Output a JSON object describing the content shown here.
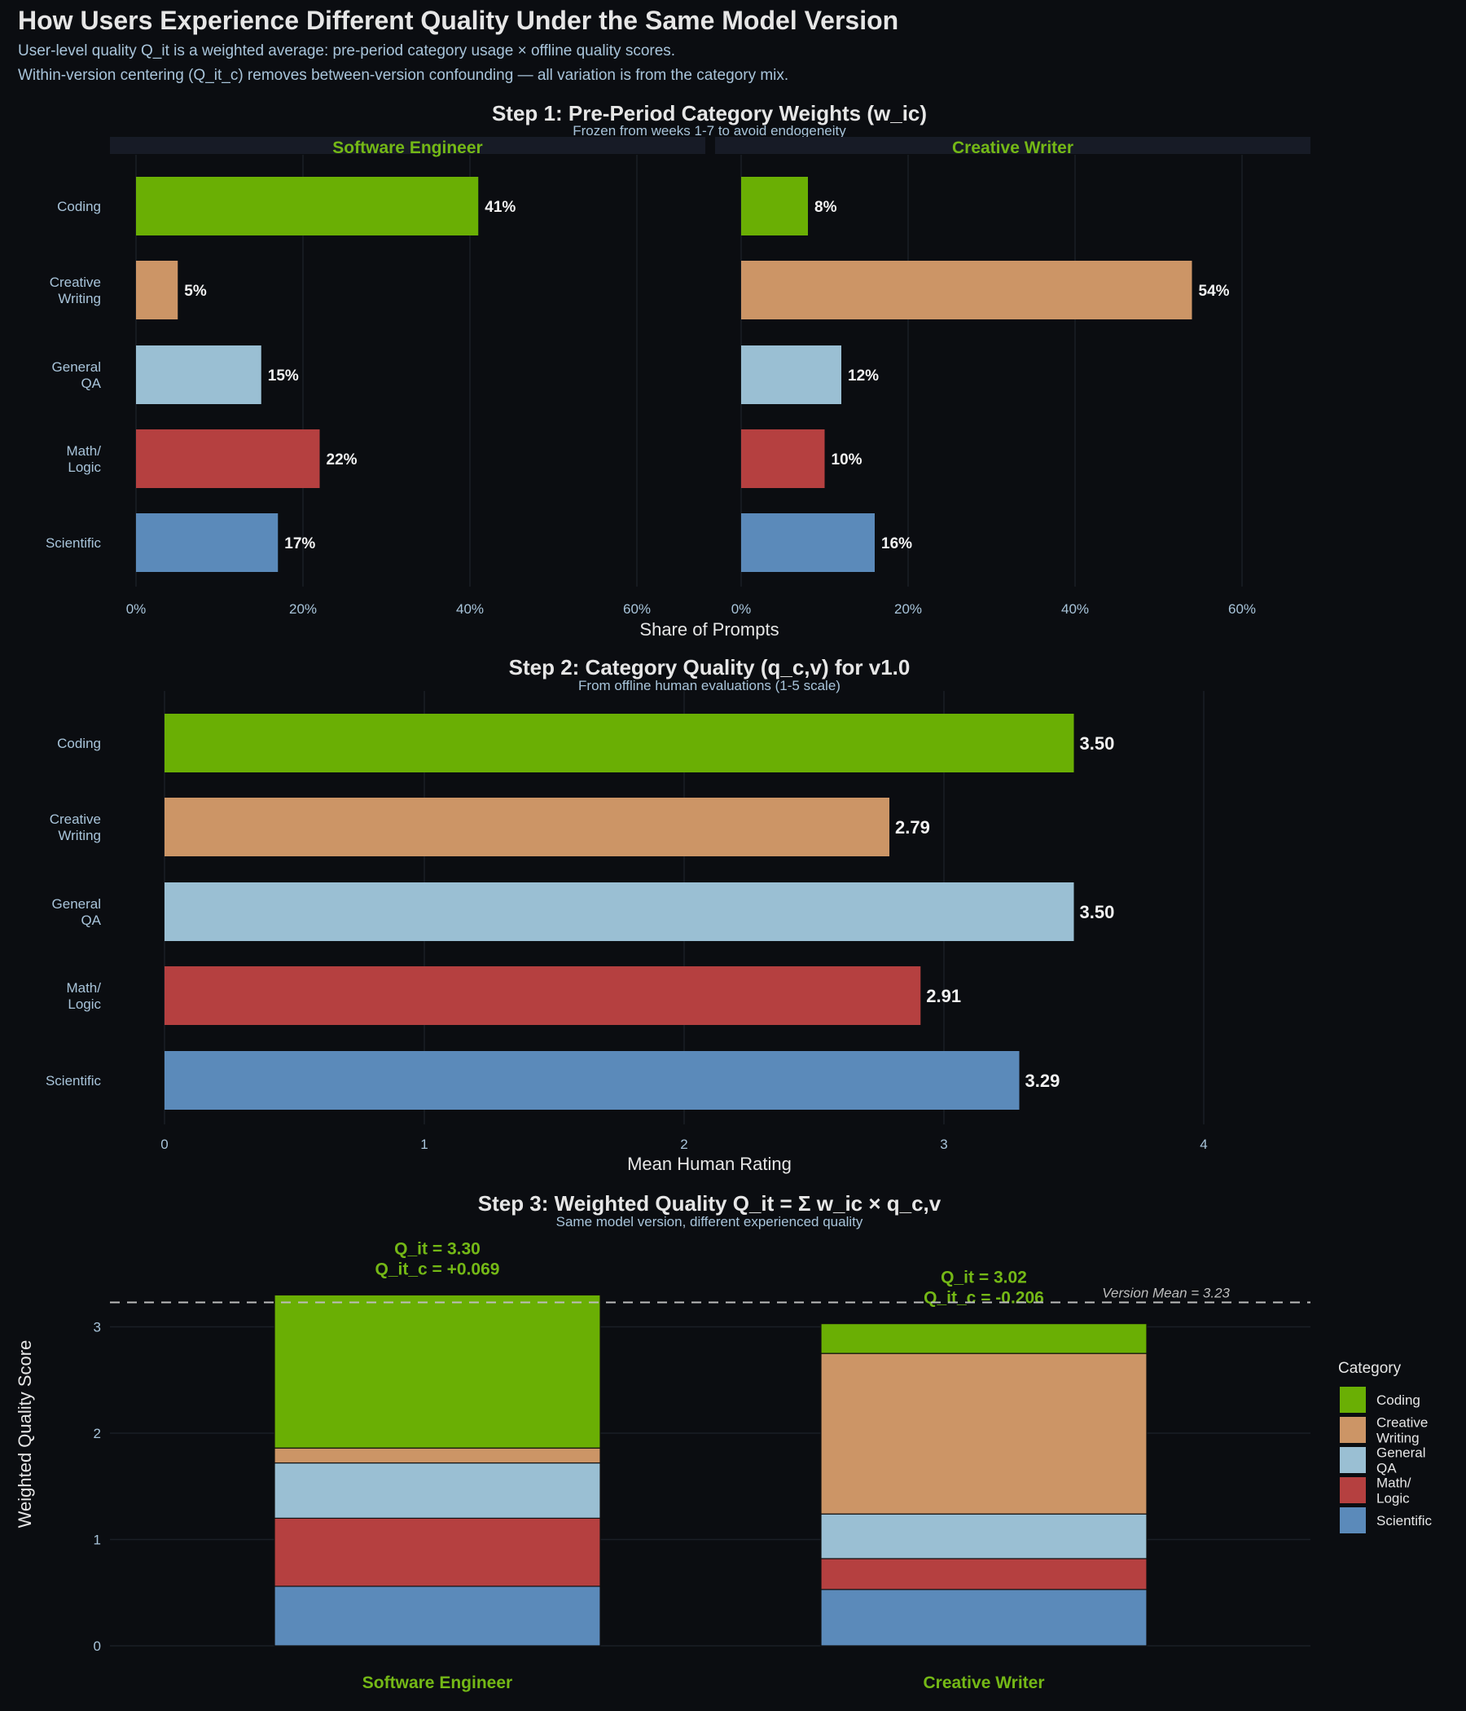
{
  "title": "How Users Experience Different Quality Under the Same Model Version",
  "subtitle_lines": [
    "User-level quality Q_it is a weighted average: pre-period category usage × offline quality scores.",
    "Within-version centering (Q_it_c) removes between-version confounding — all variation is from the category mix."
  ],
  "colors": {
    "background": "#0b0d11",
    "title_text": "#e6e6e6",
    "subtitle_text": "#a8c4da",
    "accent_green": "#74b816",
    "categories": {
      "Coding": "#6aaf04",
      "Creative Writing": "#cc9566",
      "General QA": "#9abfd3",
      "Math/Logic": "#b54040",
      "Scientific": "#5b8aba"
    }
  },
  "chart_data": [
    {
      "type": "bar",
      "orientation": "horizontal",
      "title": "Step 1: Pre-Period Category Weights (w_ic)",
      "subtitle": "Frozen from weeks 1-7 to avoid endogeneity",
      "xlabel": "Share of Prompts",
      "ylabel": "",
      "categories": [
        "Coding",
        "Creative Writing",
        "General QA",
        "Math/Logic",
        "Scientific"
      ],
      "category_labels": [
        [
          "Coding"
        ],
        [
          "Creative",
          "Writing"
        ],
        [
          "General",
          "QA"
        ],
        [
          "Math/",
          "Logic"
        ],
        [
          "Scientific"
        ]
      ],
      "xlim": [
        0,
        0.68
      ],
      "xticks": [
        0,
        0.2,
        0.4,
        0.6
      ],
      "xtick_labels": [
        "0%",
        "20%",
        "40%",
        "60%"
      ],
      "grid": true,
      "facets": [
        {
          "name": "Software Engineer",
          "values": [
            0.41,
            0.05,
            0.15,
            0.22,
            0.17
          ],
          "value_labels": [
            "41%",
            "5%",
            "15%",
            "22%",
            "17%"
          ]
        },
        {
          "name": "Creative Writer",
          "values": [
            0.08,
            0.54,
            0.12,
            0.1,
            0.16
          ],
          "value_labels": [
            "8%",
            "54%",
            "12%",
            "10%",
            "16%"
          ]
        }
      ]
    },
    {
      "type": "bar",
      "orientation": "horizontal",
      "title": "Step 2: Category Quality (q_c,v) for v1.0",
      "subtitle": "From offline human evaluations (1-5 scale)",
      "xlabel": "Mean Human Rating",
      "ylabel": "",
      "categories": [
        "Coding",
        "Creative Writing",
        "General QA",
        "Math/Logic",
        "Scientific"
      ],
      "category_labels": [
        [
          "Coding"
        ],
        [
          "Creative",
          "Writing"
        ],
        [
          "General",
          "QA"
        ],
        [
          "Math/",
          "Logic"
        ],
        [
          "Scientific"
        ]
      ],
      "values": [
        3.5,
        2.79,
        3.5,
        2.91,
        3.29
      ],
      "value_labels": [
        "3.50",
        "2.79",
        "3.50",
        "2.91",
        "3.29"
      ],
      "xlim": [
        0,
        4.2
      ],
      "xticks": [
        0,
        1,
        2,
        3,
        4
      ],
      "xtick_labels": [
        "0",
        "1",
        "2",
        "3",
        "4"
      ],
      "grid": true
    },
    {
      "type": "bar",
      "orientation": "vertical",
      "stacked": true,
      "title": "Step 3: Weighted Quality Q_it = Σ w_ic × q_c,v",
      "subtitle": "Same model version, different experienced quality",
      "xlabel": "",
      "ylabel": "Weighted Quality Score",
      "categories": [
        "Software Engineer",
        "Creative Writer"
      ],
      "series": [
        {
          "name": "Scientific",
          "values": [
            0.56,
            0.53
          ]
        },
        {
          "name": "Math/Logic",
          "values": [
            0.64,
            0.29
          ]
        },
        {
          "name": "General QA",
          "values": [
            0.52,
            0.42
          ]
        },
        {
          "name": "Creative Writing",
          "values": [
            0.14,
            1.51
          ]
        },
        {
          "name": "Coding",
          "values": [
            1.44,
            0.28
          ]
        }
      ],
      "stack_order": [
        "Scientific",
        "Math/Logic",
        "General QA",
        "Creative Writing",
        "Coding"
      ],
      "bar_annotations": [
        [
          "Q_it = 3.30",
          "Q_it_c = +0.069"
        ],
        [
          "Q_it = 3.02",
          "Q_it_c = -0.206"
        ]
      ],
      "reference_line": {
        "value": 3.23,
        "label": "Version Mean = 3.23"
      },
      "ylim": [
        -0.1,
        3.4
      ],
      "yticks": [
        0,
        1,
        2,
        3
      ],
      "ytick_labels": [
        "0",
        "1",
        "2",
        "3"
      ],
      "grid": true,
      "legend": {
        "title": "Category",
        "placement": "right",
        "entries": [
          {
            "key": "Coding",
            "label": [
              "Coding"
            ]
          },
          {
            "key": "Creative Writing",
            "label": [
              "Creative",
              "Writing"
            ]
          },
          {
            "key": "General QA",
            "label": [
              "General",
              "QA"
            ]
          },
          {
            "key": "Math/Logic",
            "label": [
              "Math/",
              "Logic"
            ]
          },
          {
            "key": "Scientific",
            "label": [
              "Scientific"
            ]
          }
        ]
      }
    }
  ]
}
